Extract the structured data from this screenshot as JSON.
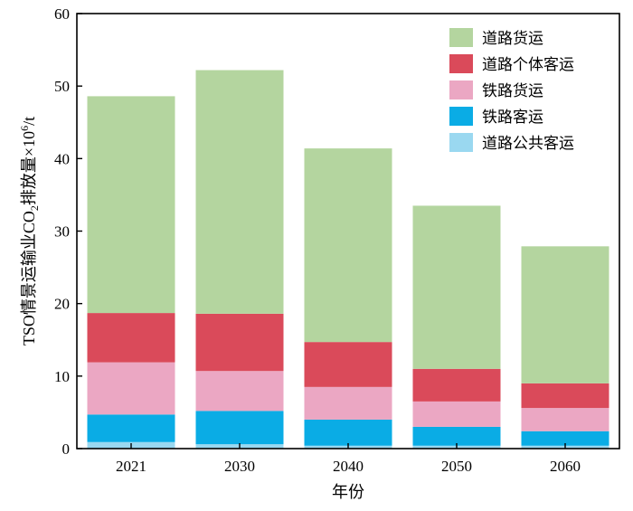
{
  "chart_data": {
    "type": "bar",
    "stacked": true,
    "categories": [
      "2021",
      "2030",
      "2040",
      "2050",
      "2060"
    ],
    "series": [
      {
        "name": "道路公共客运",
        "color": "#9ad8f0",
        "values": [
          0.9,
          0.6,
          0.4,
          0.4,
          0.4
        ]
      },
      {
        "name": "铁路客运",
        "color": "#0aace5",
        "values": [
          3.8,
          4.6,
          3.6,
          2.6,
          2.0
        ]
      },
      {
        "name": "铁路货运",
        "color": "#eba7c3",
        "values": [
          7.2,
          5.5,
          4.5,
          3.5,
          3.2
        ]
      },
      {
        "name": "道路个体客运",
        "color": "#da4a5a",
        "values": [
          6.8,
          7.9,
          6.2,
          4.5,
          3.4
        ]
      },
      {
        "name": "道路货运",
        "color": "#b4d59f",
        "values": [
          29.9,
          33.6,
          26.7,
          22.5,
          18.9
        ]
      }
    ],
    "legend_order": [
      "道路货运",
      "道路个体客运",
      "铁路货运",
      "铁路客运",
      "道路公共客运"
    ],
    "legend_position": "top-right",
    "xlabel": "年份",
    "ylabel": {
      "prefix": "TSO情景运输业CO",
      "sub": "2",
      "middle": "排放量×10",
      "sup": "6",
      "suffix": "/t"
    },
    "ylim": [
      0,
      60
    ],
    "yticks": [
      0,
      10,
      20,
      30,
      40,
      50,
      60
    ],
    "grid": false
  }
}
